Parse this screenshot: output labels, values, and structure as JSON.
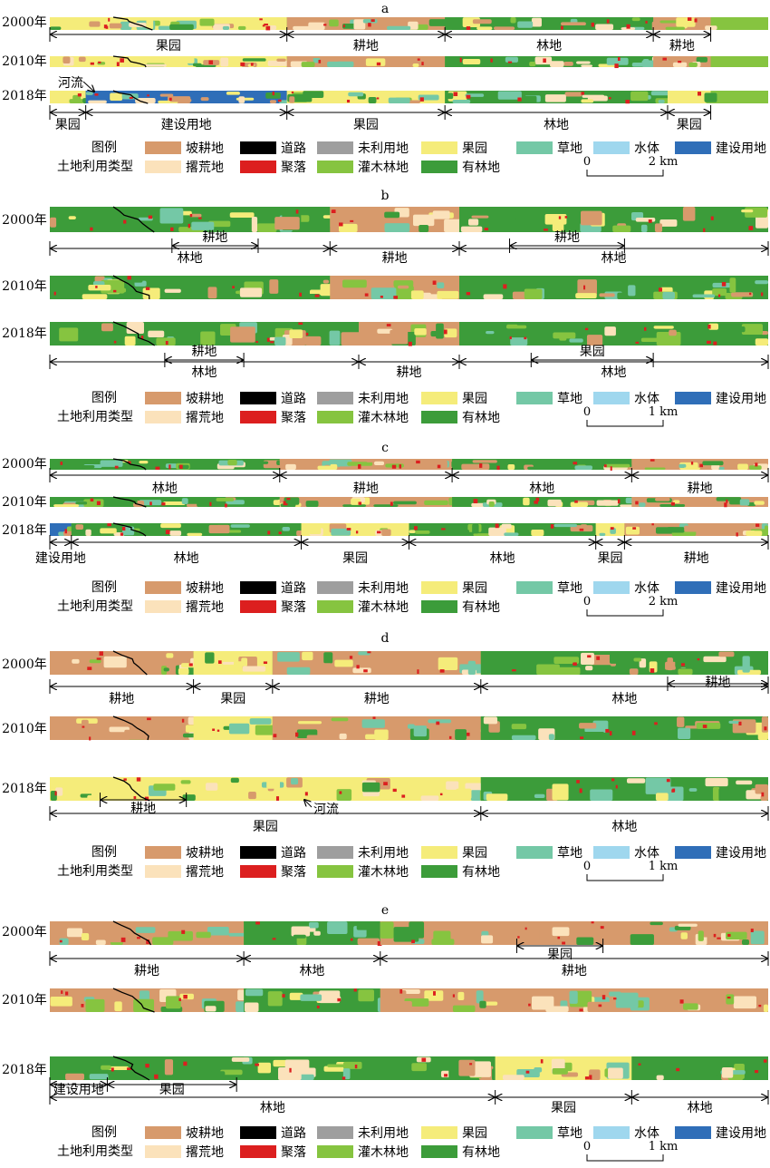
{
  "land_use_colors": {
    "slope_farmland": "#d79a6c",
    "road": "#000000",
    "unused": "#9e9e9e",
    "orchard": "#f5ec7a",
    "grassland": "#74c8a6",
    "water": "#9fd7ee",
    "construction": "#2f6eb8",
    "abandoned": "#fbe2bb",
    "settlement": "#dc1f1f",
    "shrub_forest": "#86c440",
    "forest": "#3c9c3a"
  },
  "legend": {
    "title_1": "图例",
    "title_2": "土地利用类型",
    "items": [
      {
        "key": "slope_farmland",
        "label": "坡耕地"
      },
      {
        "key": "road",
        "label": "道路"
      },
      {
        "key": "unused",
        "label": "未利用地"
      },
      {
        "key": "orchard",
        "label": "果园"
      },
      {
        "key": "grassland",
        "label": "草地"
      },
      {
        "key": "water",
        "label": "水体"
      },
      {
        "key": "construction",
        "label": "建设用地"
      },
      {
        "key": "abandoned",
        "label": "撂荒地"
      },
      {
        "key": "settlement",
        "label": "聚落"
      },
      {
        "key": "shrub_forest",
        "label": "灌木林地"
      },
      {
        "key": "forest",
        "label": "有林地"
      }
    ]
  },
  "panels": [
    {
      "id": "a",
      "years": [
        "2000年",
        "2010年",
        "2018年"
      ],
      "scale_label": "2 km",
      "scale_zero": "0",
      "river_label": "河流",
      "segments_2000": [
        {
          "label": "果园",
          "start": 0,
          "end": 0.33
        },
        {
          "label": "耕地",
          "start": 0.33,
          "end": 0.55
        },
        {
          "label": "林地",
          "start": 0.55,
          "end": 0.84
        },
        {
          "label": "耕地",
          "start": 0.84,
          "end": 0.92
        }
      ],
      "segments_2018": [
        {
          "label": "果园",
          "start": 0,
          "end": 0.05
        },
        {
          "label": "建设用地",
          "start": 0.05,
          "end": 0.33
        },
        {
          "label": "果园",
          "start": 0.33,
          "end": 0.55
        },
        {
          "label": "林地",
          "start": 0.55,
          "end": 0.86
        },
        {
          "label": "果园",
          "start": 0.86,
          "end": 0.92
        }
      ]
    },
    {
      "id": "b",
      "years": [
        "2000年",
        "2010年",
        "2018年"
      ],
      "scale_label": "1 km",
      "scale_zero": "0",
      "segments_2000_outer": [
        {
          "label": "林地",
          "start": 0,
          "end": 0.39
        },
        {
          "label": "耕地",
          "start": 0.39,
          "end": 0.57
        },
        {
          "label": "林地",
          "start": 0.57,
          "end": 1
        }
      ],
      "segments_2000_inner": [
        {
          "label": "耕地",
          "start": 0.17,
          "end": 0.29
        },
        {
          "label": "耕地",
          "start": 0.64,
          "end": 0.8
        }
      ],
      "segments_2018_outer": [
        {
          "label": "林地",
          "start": 0,
          "end": 0.43
        },
        {
          "label": "耕地",
          "start": 0.43,
          "end": 0.57
        },
        {
          "label": "林地",
          "start": 0.57,
          "end": 1
        }
      ],
      "segments_2018_inner": [
        {
          "label": "耕地",
          "start": 0.16,
          "end": 0.27
        },
        {
          "label": "果园",
          "start": 0.67,
          "end": 0.84
        }
      ]
    },
    {
      "id": "c",
      "years": [
        "2000年",
        "2010年",
        "2018年"
      ],
      "scale_label": "2 km",
      "scale_zero": "0",
      "segments_2000": [
        {
          "label": "林地",
          "start": 0,
          "end": 0.32
        },
        {
          "label": "耕地",
          "start": 0.32,
          "end": 0.56
        },
        {
          "label": "林地",
          "start": 0.56,
          "end": 0.81
        },
        {
          "label": "耕地",
          "start": 0.81,
          "end": 1
        }
      ],
      "segments_2018": [
        {
          "label": "建设用地",
          "start": 0,
          "end": 0.03
        },
        {
          "label": "林地",
          "start": 0.03,
          "end": 0.35
        },
        {
          "label": "果园",
          "start": 0.35,
          "end": 0.5
        },
        {
          "label": "林地",
          "start": 0.5,
          "end": 0.76
        },
        {
          "label": "果园",
          "start": 0.76,
          "end": 0.8
        },
        {
          "label": "耕地",
          "start": 0.8,
          "end": 1
        }
      ]
    },
    {
      "id": "d",
      "years": [
        "2000年",
        "2010年",
        "2018年"
      ],
      "scale_label": "1 km",
      "scale_zero": "0",
      "river_label": "河流",
      "segments_2000": [
        {
          "label": "耕地",
          "start": 0,
          "end": 0.2
        },
        {
          "label": "果园",
          "start": 0.2,
          "end": 0.31
        },
        {
          "label": "耕地",
          "start": 0.31,
          "end": 0.6
        },
        {
          "label": "林地",
          "start": 0.6,
          "end": 1
        }
      ],
      "segments_2000_inner": [
        {
          "label": "耕地",
          "start": 0.86,
          "end": 1
        }
      ],
      "segments_2018_outer": [
        {
          "label": "果园",
          "start": 0,
          "end": 0.6
        },
        {
          "label": "林地",
          "start": 0.6,
          "end": 1
        }
      ],
      "segments_2018_inner": [
        {
          "label": "耕地",
          "start": 0.07,
          "end": 0.19
        }
      ]
    },
    {
      "id": "e",
      "years": [
        "2000年",
        "2010年",
        "2018年"
      ],
      "scale_label": "1 km",
      "scale_zero": "0",
      "segments_2000_outer": [
        {
          "label": "耕地",
          "start": 0,
          "end": 0.27
        },
        {
          "label": "林地",
          "start": 0.27,
          "end": 0.46
        },
        {
          "label": "耕地",
          "start": 0.46,
          "end": 1
        }
      ],
      "segments_2000_inner": [
        {
          "label": "果园",
          "start": 0.65,
          "end": 0.77
        }
      ],
      "segments_2018_outer": [
        {
          "label": "林地",
          "start": 0,
          "end": 0.62
        },
        {
          "label": "果园",
          "start": 0.62,
          "end": 0.81
        },
        {
          "label": "林地",
          "start": 0.81,
          "end": 1
        }
      ],
      "segments_2018_inner": [
        {
          "label": "建设用地",
          "start": 0,
          "end": 0.08
        },
        {
          "label": "果园",
          "start": 0.08,
          "end": 0.26
        }
      ]
    }
  ]
}
